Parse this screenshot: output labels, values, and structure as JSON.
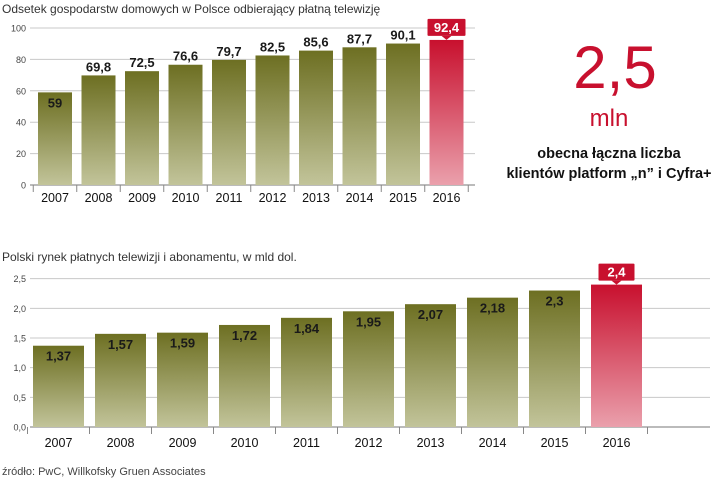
{
  "chart_data": [
    {
      "type": "bar",
      "title": "Odsetek gospodarstw domowych w Polsce odbierający płatną telewizję",
      "categories": [
        "2007",
        "2008",
        "2009",
        "2010",
        "2011",
        "2012",
        "2013",
        "2014",
        "2015",
        "2016"
      ],
      "values": [
        59,
        69.8,
        72.5,
        76.6,
        79.7,
        82.5,
        85.6,
        87.7,
        90.1,
        92.4
      ],
      "value_labels": [
        "59",
        "69,8",
        "72,5",
        "76,6",
        "79,7",
        "82,5",
        "85,6",
        "87,7",
        "90,1",
        "92,4"
      ],
      "ylim": [
        0,
        100
      ],
      "yticks": [
        "0",
        "20",
        "40",
        "60",
        "80",
        "100"
      ],
      "ytick_values": [
        0,
        20,
        40,
        60,
        80,
        100
      ],
      "highlight_index": 9,
      "grid": true
    },
    {
      "type": "bar",
      "title": "Polski rynek płatnych telewizji i abonamentu, w mld dol.",
      "categories": [
        "2007",
        "2008",
        "2009",
        "2010",
        "2011",
        "2012",
        "2013",
        "2014",
        "2015",
        "2016"
      ],
      "values": [
        1.37,
        1.57,
        1.59,
        1.72,
        1.84,
        1.95,
        2.07,
        2.18,
        2.3,
        2.4
      ],
      "value_labels": [
        "1,37",
        "1,57",
        "1,59",
        "1,72",
        "1,84",
        "1,95",
        "2,07",
        "2,18",
        "2,3",
        "2,4"
      ],
      "ylim": [
        0,
        3.0
      ],
      "yticks": [
        "0,0",
        "0,5",
        "1,0",
        "1,5",
        "2,0",
        "2,5"
      ],
      "ytick_values": [
        0,
        0.5,
        1.0,
        1.5,
        2.0,
        2.5
      ],
      "highlight_index": 9,
      "grid": true
    }
  ],
  "callout": {
    "number": "2,5",
    "unit": "mln",
    "caption_line1": "obecna łączna liczba",
    "caption_line2": "klientów platform „n” i Cyfra+"
  },
  "source": "źródło: PwC, Willkofsky Gruen Associates",
  "colors": {
    "bar_top": "#6d6f22",
    "bar_bottom": "#c2c49a",
    "highlight_top": "#c8102e",
    "highlight_bottom": "#eaa0ac",
    "accent": "#c8102e",
    "grid": "#c8c8c8"
  }
}
